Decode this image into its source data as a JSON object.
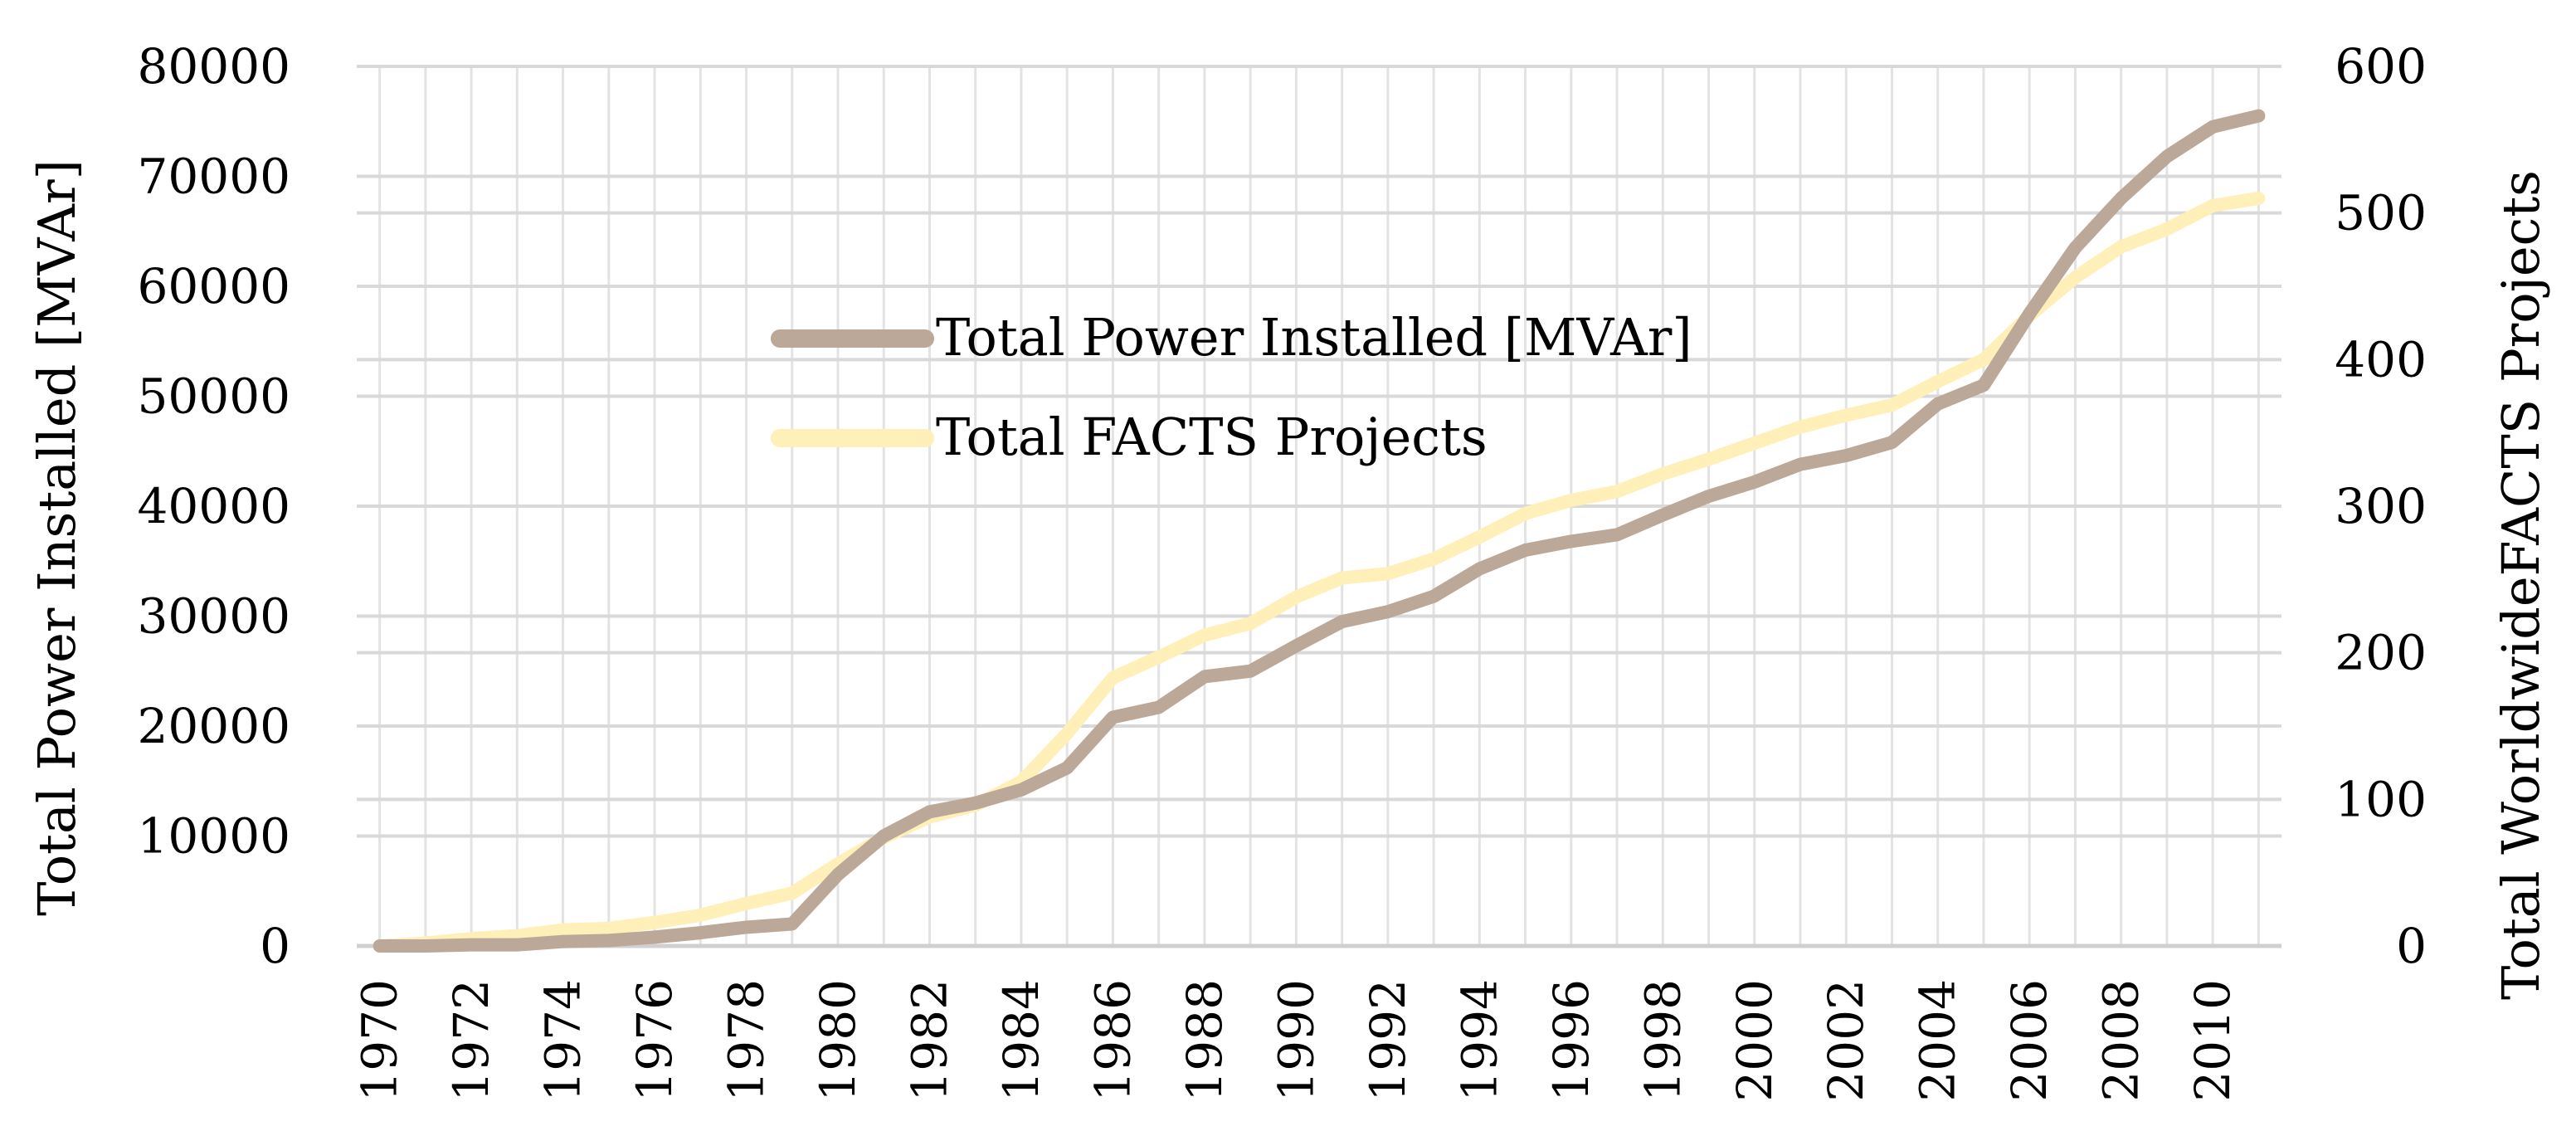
{
  "chart_data": {
    "type": "line",
    "x": [
      1970,
      1971,
      1972,
      1973,
      1974,
      1975,
      1976,
      1977,
      1978,
      1979,
      1980,
      1981,
      1982,
      1983,
      1984,
      1985,
      1986,
      1987,
      1988,
      1989,
      1990,
      1991,
      1992,
      1993,
      1994,
      1995,
      1996,
      1997,
      1998,
      1999,
      2000,
      2001,
      2002,
      2003,
      2004,
      2005,
      2006,
      2007,
      2008,
      2009,
      2010,
      2011
    ],
    "x_tick_labels": [
      "1970",
      "1972",
      "1974",
      "1976",
      "1978",
      "1980",
      "1982",
      "1984",
      "1986",
      "1988",
      "1990",
      "1992",
      "1994",
      "1996",
      "1998",
      "2000",
      "2002",
      "2004",
      "2006",
      "2008",
      "2010"
    ],
    "series": [
      {
        "name": "Total Power Installed [MVAr]",
        "axis": "left",
        "color": "#BCA898",
        "values": [
          0,
          0,
          100,
          100,
          400,
          500,
          800,
          1200,
          1700,
          2000,
          6500,
          10000,
          12200,
          13000,
          14200,
          16200,
          20800,
          21700,
          24500,
          25000,
          27300,
          29500,
          30400,
          31800,
          34300,
          36000,
          36800,
          37400,
          39200,
          40900,
          42200,
          43800,
          44600,
          45800,
          49300,
          51000,
          57500,
          63500,
          68000,
          71800,
          74500,
          75500
        ]
      },
      {
        "name": "Total FACTS Projects",
        "axis": "right",
        "color": "#FFEFB8",
        "values": [
          0,
          2,
          5,
          7,
          11,
          12,
          16,
          21,
          29,
          36,
          56,
          74,
          88,
          96,
          112,
          145,
          183,
          197,
          212,
          220,
          238,
          251,
          254,
          264,
          279,
          295,
          304,
          310,
          322,
          332,
          343,
          354,
          362,
          369,
          385,
          400,
          430,
          456,
          477,
          489,
          505,
          510
        ]
      }
    ],
    "title": "",
    "xlabel": "",
    "ylabel": "Total Power Installed [MVAr]",
    "y2label": "Total WorldwideFACTS Projects",
    "ylim": [
      0,
      80000
    ],
    "y2lim": [
      0,
      600
    ],
    "y_ticks": [
      0,
      10000,
      20000,
      30000,
      40000,
      50000,
      60000,
      70000,
      80000
    ],
    "y2_ticks": [
      0,
      100,
      200,
      300,
      400,
      500,
      600
    ],
    "grid": true,
    "legend_position": "upper-center"
  }
}
